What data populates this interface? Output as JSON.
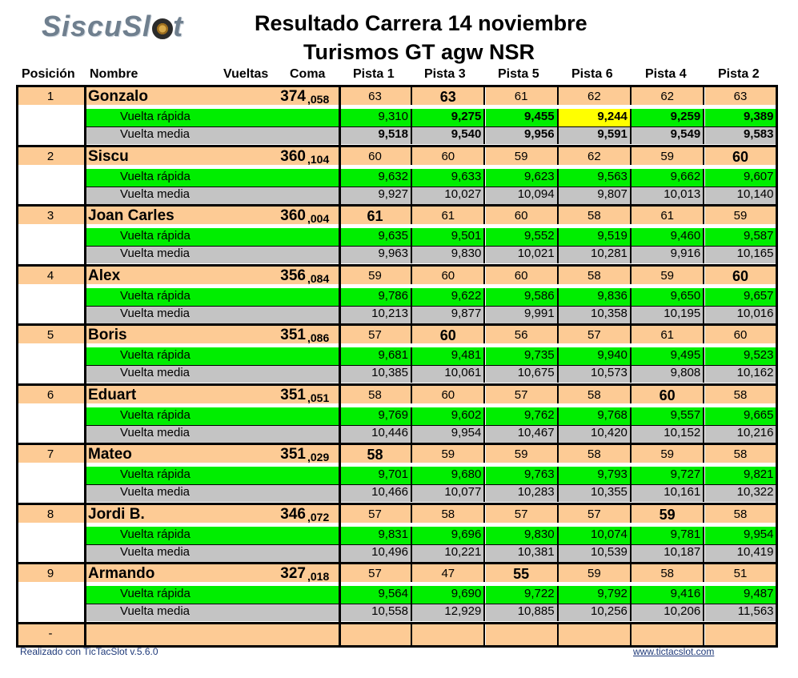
{
  "logo": {
    "text": "SiscuSl",
    "tail": "t"
  },
  "title": {
    "line1": "Resultado Carrera  14 noviembre",
    "line2": "Turismos GT agw NSR"
  },
  "headers": {
    "posicion": "Posición",
    "nombre": "Nombre",
    "vueltas": "Vueltas",
    "coma": "Coma",
    "pistas": [
      "Pista 1",
      "Pista 3",
      "Pista 5",
      "Pista 6",
      "Pista 4",
      "Pista 2"
    ]
  },
  "rapida_label": "Vuelta rápida",
  "media_label": "Vuelta media",
  "racers": [
    {
      "pos": "1",
      "name": "Gonzalo",
      "vueltas": "374",
      "coma": ",058",
      "laps": [
        "63",
        "63",
        "61",
        "62",
        "62",
        "63"
      ],
      "lap_best": [
        1
      ],
      "rapida": [
        "9,310",
        "9,275",
        "9,455",
        "9,244",
        "9,259",
        "9,389"
      ],
      "rapida_bold": [
        1,
        2,
        3,
        4,
        5
      ],
      "rapida_hl": [
        3
      ],
      "media": [
        "9,518",
        "9,540",
        "9,956",
        "9,591",
        "9,549",
        "9,583"
      ],
      "media_bold": [
        0,
        1,
        2,
        3,
        4,
        5
      ]
    },
    {
      "pos": "2",
      "name": "Siscu",
      "vueltas": "360",
      "coma": ",104",
      "laps": [
        "60",
        "60",
        "59",
        "62",
        "59",
        "60"
      ],
      "lap_best": [
        5
      ],
      "rapida": [
        "9,632",
        "9,633",
        "9,623",
        "9,563",
        "9,662",
        "9,607"
      ],
      "rapida_bold": [],
      "rapida_hl": [],
      "media": [
        "9,927",
        "10,027",
        "10,094",
        "9,807",
        "10,013",
        "10,140"
      ],
      "media_bold": []
    },
    {
      "pos": "3",
      "name": "Joan Carles",
      "vueltas": "360",
      "coma": ",004",
      "laps": [
        "61",
        "61",
        "60",
        "58",
        "61",
        "59"
      ],
      "lap_best": [
        0
      ],
      "rapida": [
        "9,635",
        "9,501",
        "9,552",
        "9,519",
        "9,460",
        "9,587"
      ],
      "rapida_bold": [],
      "rapida_hl": [],
      "media": [
        "9,963",
        "9,830",
        "10,021",
        "10,281",
        "9,916",
        "10,165"
      ],
      "media_bold": []
    },
    {
      "pos": "4",
      "name": "Alex",
      "vueltas": "356",
      "coma": ",084",
      "laps": [
        "59",
        "60",
        "60",
        "58",
        "59",
        "60"
      ],
      "lap_best": [
        5
      ],
      "rapida": [
        "9,786",
        "9,622",
        "9,586",
        "9,836",
        "9,650",
        "9,657"
      ],
      "rapida_bold": [],
      "rapida_hl": [],
      "media": [
        "10,213",
        "9,877",
        "9,991",
        "10,358",
        "10,195",
        "10,016"
      ],
      "media_bold": []
    },
    {
      "pos": "5",
      "name": "Boris",
      "vueltas": "351",
      "coma": ",086",
      "laps": [
        "57",
        "60",
        "56",
        "57",
        "61",
        "60"
      ],
      "lap_best": [
        1
      ],
      "rapida": [
        "9,681",
        "9,481",
        "9,735",
        "9,940",
        "9,495",
        "9,523"
      ],
      "rapida_bold": [],
      "rapida_hl": [],
      "media": [
        "10,385",
        "10,061",
        "10,675",
        "10,573",
        "9,808",
        "10,162"
      ],
      "media_bold": []
    },
    {
      "pos": "6",
      "name": "Eduart",
      "vueltas": "351",
      "coma": ",051",
      "laps": [
        "58",
        "60",
        "57",
        "58",
        "60",
        "58"
      ],
      "lap_best": [
        4
      ],
      "rapida": [
        "9,769",
        "9,602",
        "9,762",
        "9,768",
        "9,557",
        "9,665"
      ],
      "rapida_bold": [],
      "rapida_hl": [],
      "media": [
        "10,446",
        "9,954",
        "10,467",
        "10,420",
        "10,152",
        "10,216"
      ],
      "media_bold": []
    },
    {
      "pos": "7",
      "name": "Mateo",
      "vueltas": "351",
      "coma": ",029",
      "laps": [
        "58",
        "59",
        "59",
        "58",
        "59",
        "58"
      ],
      "lap_best": [
        0
      ],
      "rapida": [
        "9,701",
        "9,680",
        "9,763",
        "9,793",
        "9,727",
        "9,821"
      ],
      "rapida_bold": [],
      "rapida_hl": [],
      "media": [
        "10,466",
        "10,077",
        "10,283",
        "10,355",
        "10,161",
        "10,322"
      ],
      "media_bold": []
    },
    {
      "pos": "8",
      "name": "Jordi B.",
      "vueltas": "346",
      "coma": ",072",
      "laps": [
        "57",
        "58",
        "57",
        "57",
        "59",
        "58"
      ],
      "lap_best": [
        4
      ],
      "rapida": [
        "9,831",
        "9,696",
        "9,830",
        "10,074",
        "9,781",
        "9,954"
      ],
      "rapida_bold": [],
      "rapida_hl": [],
      "media": [
        "10,496",
        "10,221",
        "10,381",
        "10,539",
        "10,187",
        "10,419"
      ],
      "media_bold": []
    },
    {
      "pos": "9",
      "name": "Armando",
      "vueltas": "327",
      "coma": ",018",
      "laps": [
        "57",
        "47",
        "55",
        "59",
        "58",
        "51"
      ],
      "lap_best": [
        2
      ],
      "rapida": [
        "9,564",
        "9,690",
        "9,722",
        "9,792",
        "9,416",
        "9,487"
      ],
      "rapida_bold": [],
      "rapida_hl": [],
      "media": [
        "10,558",
        "12,929",
        "10,885",
        "10,256",
        "10,206",
        "11,563"
      ],
      "media_bold": []
    }
  ],
  "empty_row": {
    "pos": "-"
  },
  "footer": {
    "left": "Realizado con TicTacSlot v.5.6.0",
    "right": "www.tictacslot.com"
  }
}
